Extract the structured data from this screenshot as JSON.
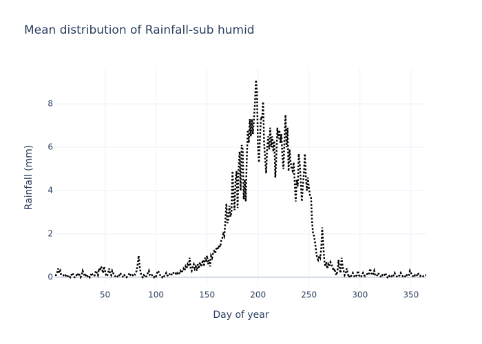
{
  "chart_data": {
    "type": "line",
    "title": "Mean distribution of Rainfall-sub humid",
    "x_label": "Day of year",
    "y_label": "Rainfall (mm)",
    "xlim": [
      1,
      365
    ],
    "ylim": [
      -0.38,
      9.62
    ],
    "xticks": [
      50,
      100,
      150,
      200,
      250,
      300,
      350
    ],
    "yticks": [
      0,
      2,
      4,
      6,
      8
    ],
    "grid": true,
    "x": [
      1,
      2,
      3,
      4,
      5,
      6,
      7,
      8,
      9,
      10,
      11,
      12,
      13,
      14,
      15,
      16,
      17,
      18,
      19,
      20,
      21,
      22,
      23,
      24,
      25,
      26,
      27,
      28,
      29,
      30,
      31,
      32,
      33,
      34,
      35,
      36,
      37,
      38,
      39,
      40,
      41,
      42,
      43,
      44,
      45,
      46,
      47,
      48,
      49,
      50,
      51,
      52,
      53,
      54,
      55,
      56,
      57,
      58,
      59,
      60,
      61,
      62,
      63,
      64,
      65,
      66,
      67,
      68,
      69,
      70,
      71,
      72,
      73,
      74,
      75,
      76,
      77,
      78,
      79,
      80,
      81,
      82,
      83,
      84,
      85,
      86,
      87,
      88,
      89,
      90,
      91,
      92,
      93,
      94,
      95,
      96,
      97,
      98,
      99,
      100,
      101,
      102,
      103,
      104,
      105,
      106,
      107,
      108,
      109,
      110,
      111,
      112,
      113,
      114,
      115,
      116,
      117,
      118,
      119,
      120,
      121,
      122,
      123,
      124,
      125,
      126,
      127,
      128,
      129,
      130,
      131,
      132,
      133,
      134,
      135,
      136,
      137,
      138,
      139,
      140,
      141,
      142,
      143,
      144,
      145,
      146,
      147,
      148,
      149,
      150,
      151,
      152,
      153,
      154,
      155,
      156,
      157,
      158,
      159,
      160,
      161,
      162,
      163,
      164,
      165,
      166,
      167,
      168,
      169,
      170,
      171,
      172,
      173,
      174,
      175,
      176,
      177,
      178,
      179,
      180,
      181,
      182,
      183,
      184,
      185,
      186,
      187,
      188,
      189,
      190,
      191,
      192,
      193,
      194,
      195,
      196,
      197,
      198,
      199,
      200,
      201,
      202,
      203,
      204,
      205,
      206,
      207,
      208,
      209,
      210,
      211,
      212,
      213,
      214,
      215,
      216,
      217,
      218,
      219,
      220,
      221,
      222,
      223,
      224,
      225,
      226,
      227,
      228,
      229,
      230,
      231,
      232,
      233,
      234,
      235,
      236,
      237,
      238,
      239,
      240,
      241,
      242,
      243,
      244,
      245,
      246,
      247,
      248,
      249,
      250,
      251,
      252,
      253,
      254,
      255,
      256,
      257,
      258,
      259,
      260,
      261,
      262,
      263,
      264,
      265,
      266,
      267,
      268,
      269,
      270,
      271,
      272,
      273,
      274,
      275,
      276,
      277,
      278,
      279,
      280,
      281,
      282,
      283,
      284,
      285,
      286,
      287,
      288,
      289,
      290,
      291,
      292,
      293,
      294,
      295,
      296,
      297,
      298,
      299,
      300,
      301,
      302,
      303,
      304,
      305,
      306,
      307,
      308,
      309,
      310,
      311,
      312,
      313,
      314,
      315,
      316,
      317,
      318,
      319,
      320,
      321,
      322,
      323,
      324,
      325,
      326,
      327,
      328,
      329,
      330,
      331,
      332,
      333,
      334,
      335,
      336,
      337,
      338,
      339,
      340,
      341,
      342,
      343,
      344,
      345,
      346,
      347,
      348,
      349,
      350,
      351,
      352,
      353,
      354,
      355,
      356,
      357,
      358,
      359,
      360,
      361,
      362,
      363,
      364,
      365
    ],
    "series": [
      {
        "color": "#000000",
        "values": [
          0.1,
          0.1,
          0.2,
          0.4,
          0.2,
          0.3,
          0.1,
          0.1,
          0.1,
          0.05,
          0.1,
          0.05,
          0,
          0.1,
          0.05,
          0,
          0.1,
          0.2,
          0.1,
          0,
          0,
          0.1,
          0.05,
          0.2,
          0.1,
          0,
          0.1,
          0.3,
          0.2,
          0.05,
          0.1,
          0,
          0.05,
          0.1,
          0,
          0.1,
          0.2,
          0.1,
          0.05,
          0.1,
          0.3,
          0.2,
          0.1,
          0.4,
          0.3,
          0.5,
          0.4,
          0.2,
          0.5,
          0.3,
          0.1,
          0.05,
          0.2,
          0.4,
          0.2,
          0.1,
          0.3,
          0.2,
          0.1,
          0.05,
          0.1,
          0.05,
          0,
          0.1,
          0.2,
          0.1,
          0.05,
          0,
          0.1,
          0.05,
          0,
          0.05,
          0.1,
          0.2,
          0.1,
          0.05,
          0.1,
          0.05,
          0.1,
          0.2,
          0.3,
          0.6,
          1.0,
          0.5,
          0.2,
          0.05,
          0,
          0.1,
          0.05,
          0,
          0.1,
          0.2,
          0.3,
          0.1,
          0.05,
          0.1,
          0.05,
          0,
          0.1,
          0.05,
          0.2,
          0.3,
          0.2,
          0.1,
          0.05,
          0,
          0.1,
          0.05,
          0.1,
          0.2,
          0.1,
          0.05,
          0.1,
          0.2,
          0.15,
          0.1,
          0.2,
          0.25,
          0.2,
          0.1,
          0.2,
          0.15,
          0.2,
          0.3,
          0.2,
          0.3,
          0.4,
          0.3,
          0.5,
          0.4,
          0.6,
          0.5,
          0.9,
          0.4,
          0.3,
          0.5,
          0.6,
          0.4,
          0.5,
          0.3,
          0.6,
          0.4,
          0.7,
          0.5,
          0.6,
          0.8,
          0.5,
          0.9,
          0.7,
          1.0,
          0.6,
          0.8,
          0.5,
          1.0,
          0.9,
          1.1,
          1.2,
          1.1,
          1.3,
          1.4,
          1.3,
          1.5,
          1.4,
          1.7,
          1.8,
          2.0,
          1.9,
          2.6,
          3.4,
          2.5,
          2.7,
          3.3,
          2.8,
          3.0,
          4.9,
          3.8,
          3.1,
          4.5,
          4.9,
          3.2,
          5.0,
          5.8,
          4.0,
          6.1,
          5.9,
          3.6,
          4.5,
          3.5,
          5.5,
          6.8,
          6.2,
          7.3,
          6.5,
          7.3,
          6.6,
          7.3,
          8.0,
          9.1,
          8.5,
          6.0,
          5.3,
          6.5,
          7.4,
          7.3,
          8.1,
          6.2,
          5.5,
          4.8,
          6.0,
          6.5,
          5.9,
          6.9,
          6.0,
          6.5,
          5.8,
          6.3,
          4.6,
          5.5,
          6.9,
          6.4,
          6.8,
          6.2,
          6.6,
          5.5,
          5.0,
          6.4,
          7.5,
          6.0,
          6.9,
          4.9,
          5.9,
          5.3,
          5.0,
          4.9,
          5.3,
          4.4,
          3.5,
          4.5,
          4.2,
          5.7,
          5.2,
          4.4,
          3.5,
          4.2,
          4.8,
          5.7,
          4.6,
          4.0,
          4.6,
          4.1,
          3.8,
          3.7,
          2.6,
          2.0,
          1.9,
          1.6,
          1.2,
          0.9,
          0.8,
          1.0,
          0.9,
          1.3,
          2.3,
          1.5,
          0.8,
          0.5,
          0.7,
          0.4,
          0.6,
          0.5,
          0.7,
          0.6,
          0.5,
          0.3,
          0.4,
          0.2,
          0.1,
          0.3,
          0.8,
          0.4,
          0.2,
          0.9,
          0.5,
          0.3,
          0.1,
          0.2,
          0.4,
          0.2,
          0,
          0.1,
          0.05,
          0.1,
          0.2,
          0.1,
          0,
          0.05,
          0.1,
          0.3,
          0.1,
          0.05,
          0,
          0.1,
          0.2,
          0.1,
          0.05,
          0.1,
          0.15,
          0.1,
          0.2,
          0.4,
          0.2,
          0.1,
          0.15,
          0.3,
          0.1,
          0.05,
          0.1,
          0.2,
          0.1,
          0.05,
          0,
          0.1,
          0.05,
          0.1,
          0.2,
          0.05,
          0,
          0.1,
          0.05,
          0.1,
          0.05,
          0,
          0.1,
          0.2,
          0.1,
          0.05,
          0,
          0.05,
          0.1,
          0.2,
          0.1,
          0.05,
          0.1,
          0.05,
          0,
          0.1,
          0.05,
          0.1,
          0.3,
          0.2,
          0.1,
          0.05,
          0,
          0.1,
          0.05,
          0.1,
          0.2,
          0.1,
          0.05,
          0.1,
          0.1,
          0.05,
          0.1,
          0.1,
          0.1
        ]
      }
    ]
  }
}
